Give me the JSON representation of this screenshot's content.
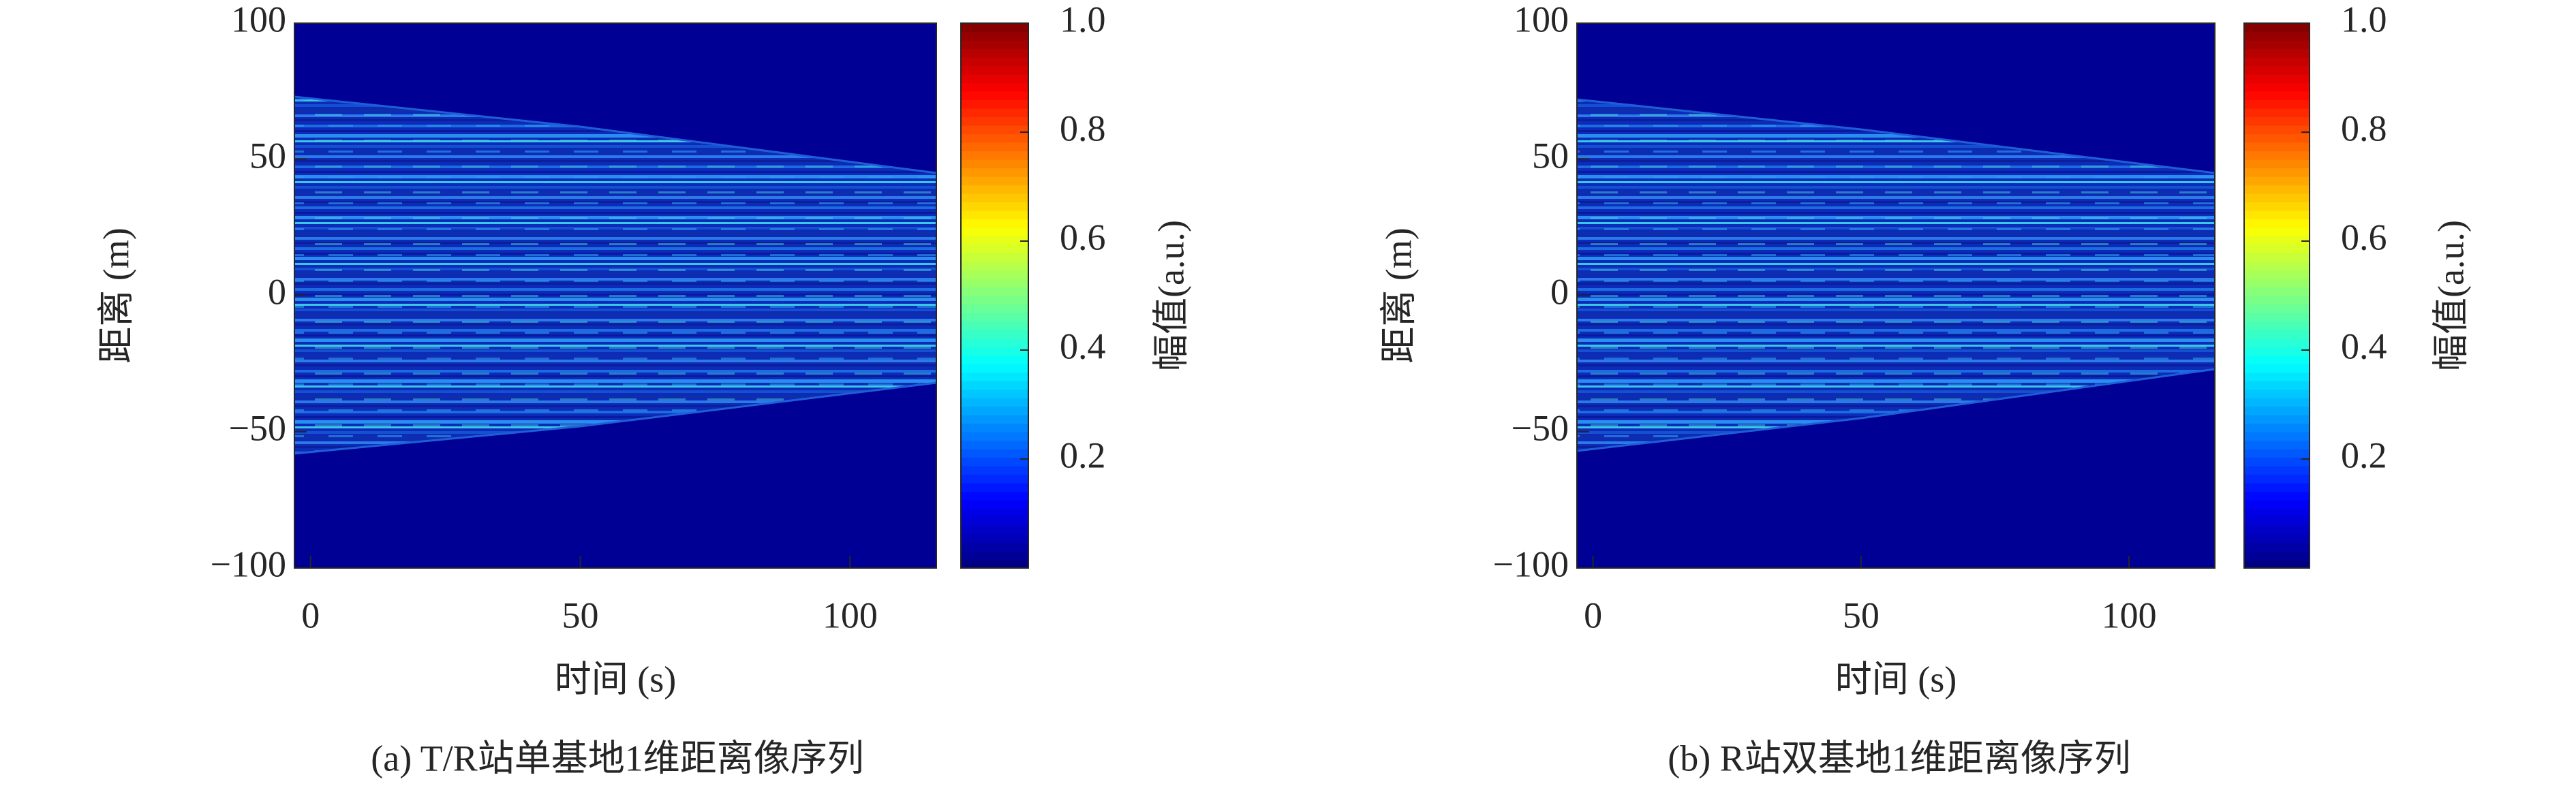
{
  "chart_data": [
    {
      "type": "heatmap",
      "caption": "(a) T/R站单基地1维距离像序列",
      "xlabel": "时间 (s)",
      "ylabel": "距离 (m)",
      "colorbar_label": "幅值(a.u.)",
      "colormap": "jet",
      "xlim": [
        -3,
        116
      ],
      "xticks": [
        0,
        50,
        100
      ],
      "ylim": [
        -100,
        100
      ],
      "yticks": [
        {
          "value": -100,
          "label": "−100"
        },
        {
          "value": -50,
          "label": "−50"
        },
        0,
        50,
        100
      ],
      "clim": [
        0,
        1
      ],
      "cticks": [
        0.2,
        0.4,
        0.6,
        0.8,
        {
          "value": 1,
          "label": "1.0"
        }
      ],
      "envelope": {
        "x": [
          -3,
          50,
          116
        ],
        "upper": [
          73,
          62,
          45
        ],
        "lower": [
          -58,
          -48,
          -32
        ]
      }
    },
    {
      "type": "heatmap",
      "caption": "(b) R站双基地1维距离像序列",
      "xlabel": "时间 (s)",
      "ylabel": "距离 (m)",
      "colorbar_label": "幅值(a.u.)",
      "colormap": "jet",
      "xlim": [
        -3,
        116
      ],
      "xticks": [
        0,
        50,
        100
      ],
      "ylim": [
        -100,
        100
      ],
      "yticks": [
        {
          "value": -100,
          "label": "−100"
        },
        {
          "value": -50,
          "label": "−50"
        },
        0,
        50,
        100
      ],
      "clim": [
        0,
        1
      ],
      "cticks": [
        0.2,
        0.4,
        0.6,
        0.8,
        {
          "value": 1,
          "label": "1.0"
        }
      ],
      "envelope": {
        "x": [
          -3,
          50,
          116
        ],
        "upper": [
          72,
          61,
          45
        ],
        "lower": [
          -57,
          -45,
          -27
        ]
      }
    }
  ]
}
